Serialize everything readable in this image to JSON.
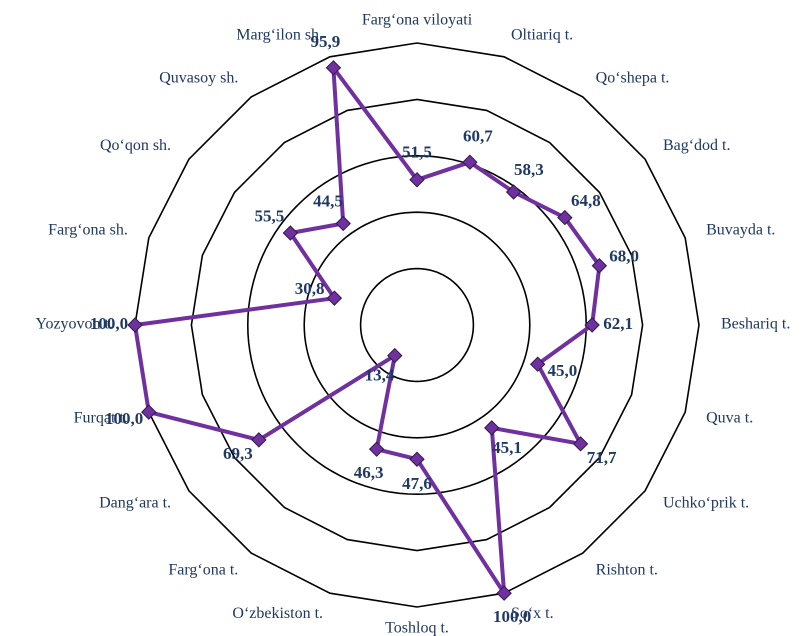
{
  "chart_data": {
    "type": "radar",
    "categories": [
      "Farg‘ona viloyati",
      "Oltiariq t.",
      "Qo‘shepa t.",
      "Bag‘dod t.",
      "Buvayda t.",
      "Beshariq t.",
      "Quva t.",
      "Uchko‘prik t.",
      "Rishton t.",
      "So‘x t.",
      "Toshloq t.",
      "O‘zbekiston t.",
      "Farg‘ona t.",
      "Dang‘ara t.",
      "Furqat t.",
      "Yozyovon t.",
      "Farg‘ona sh.",
      "Qo‘qon sh.",
      "Quvasoy sh.",
      "Marg‘ilon sh."
    ],
    "values": [
      51.5,
      60.7,
      58.3,
      64.8,
      68.0,
      62.1,
      45.0,
      71.7,
      45.1,
      100.0,
      47.6,
      46.3,
      13.4,
      69.3,
      100.0,
      100.0,
      30.8,
      55.5,
      44.5,
      95.9
    ],
    "value_labels": [
      "51,5",
      "60,7",
      "58,3",
      "64,8",
      "68,0",
      "62,1",
      "45,0",
      "71,7",
      "45,1",
      "100,0",
      "47,6",
      "46,3",
      "13,4",
      "69,3",
      "100,0",
      "100,0",
      "30,8",
      "55,5",
      "44,5",
      "95,9"
    ],
    "color": "#7030a0",
    "rlim": [
      0,
      100
    ],
    "rticks": [
      0,
      20,
      40,
      60,
      80,
      100
    ],
    "grid": true
  }
}
